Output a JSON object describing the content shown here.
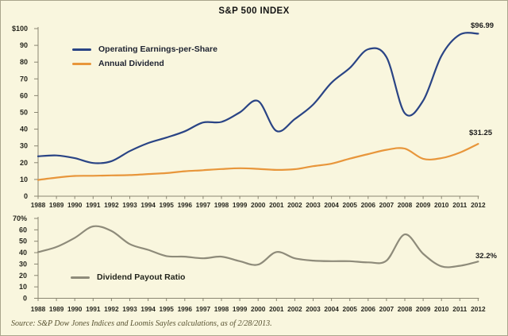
{
  "window": {
    "title": "S&P 500 INDEX"
  },
  "colors": {
    "background": "#f9f6de",
    "frame_border": "#aaa58c",
    "axis": "#8a8672",
    "tick_text": "#26261e",
    "eps_line": "#2a4485",
    "dividend_line": "#e8963b",
    "payout_line": "#8e8b7a",
    "label_text": "#1c1c1c",
    "source_text": "#575130"
  },
  "source": "Source: S&P Dow Jones Indices and Loomis Sayles calculations, as of 2/28/2013.",
  "chart_data": [
    {
      "type": "line",
      "panel": "top",
      "title": "",
      "xlabel": "",
      "ylabel": "",
      "ylim": [
        0,
        100
      ],
      "ytick_step": 10,
      "ytick_labels": [
        "0",
        "10",
        "20",
        "30",
        "40",
        "50",
        "60",
        "70",
        "80",
        "90",
        "$100"
      ],
      "x": [
        1988,
        1989,
        1990,
        1991,
        1992,
        1993,
        1994,
        1995,
        1996,
        1997,
        1998,
        1999,
        2000,
        2001,
        2002,
        2003,
        2004,
        2005,
        2006,
        2007,
        2008,
        2009,
        2010,
        2011,
        2012
      ],
      "grid": false,
      "legend_position": "inside-top-left",
      "series": [
        {
          "name": "Operating Earnings-per-Share",
          "color": "#2a4485",
          "end_label": "$96.99",
          "values": [
            23.8,
            24.3,
            22.7,
            19.8,
            20.9,
            26.9,
            31.7,
            35.0,
            38.7,
            44.0,
            44.3,
            50.0,
            56.8,
            38.9,
            46.0,
            54.7,
            67.7,
            76.5,
            87.7,
            83.0,
            49.5,
            57.0,
            83.8,
            96.4,
            96.99
          ]
        },
        {
          "name": "Annual Dividend",
          "color": "#e8963b",
          "end_label": "$31.25",
          "values": [
            9.7,
            11.1,
            12.1,
            12.2,
            12.4,
            12.6,
            13.2,
            13.8,
            14.9,
            15.5,
            16.2,
            16.7,
            16.3,
            15.7,
            16.1,
            17.9,
            19.4,
            22.4,
            25.1,
            27.7,
            28.4,
            22.3,
            22.7,
            26.0,
            31.25
          ]
        }
      ]
    },
    {
      "type": "line",
      "panel": "bottom",
      "title": "",
      "xlabel": "",
      "ylabel": "",
      "ylim": [
        0,
        70
      ],
      "ytick_step": 10,
      "ytick_labels": [
        "0",
        "10",
        "20",
        "30",
        "40",
        "50",
        "60",
        "70%"
      ],
      "x": [
        1988,
        1989,
        1990,
        1991,
        1992,
        1993,
        1994,
        1995,
        1996,
        1997,
        1998,
        1999,
        2000,
        2001,
        2002,
        2003,
        2004,
        2005,
        2006,
        2007,
        2008,
        2009,
        2010,
        2011,
        2012
      ],
      "grid": false,
      "legend_position": "inside-bottom-left",
      "series": [
        {
          "name": "Dividend Payout Ratio",
          "color": "#8e8b7a",
          "end_label": "32.2%",
          "values": [
            40.5,
            45.0,
            53.0,
            63.0,
            59.0,
            47.5,
            42.5,
            37.0,
            36.5,
            35.0,
            36.5,
            32.5,
            29.5,
            40.5,
            35.0,
            33.0,
            32.5,
            32.5,
            31.5,
            33.0,
            56.0,
            39.0,
            28.0,
            28.5,
            32.2
          ]
        }
      ]
    }
  ]
}
